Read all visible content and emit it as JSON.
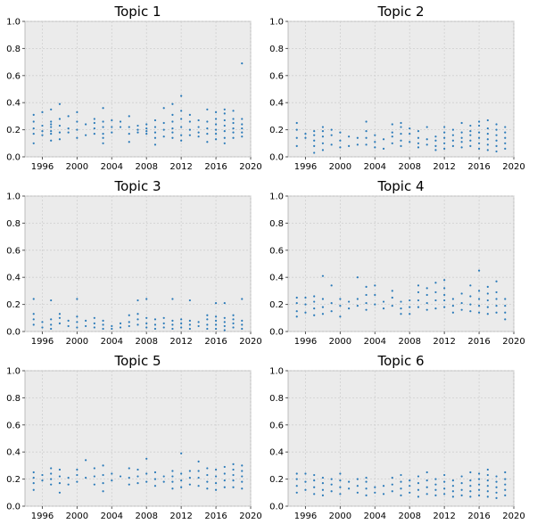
{
  "chart_data": [
    {
      "type": "scatter",
      "title": "Topic 1",
      "xlim": [
        1994,
        2020
      ],
      "ylim": [
        0,
        1
      ],
      "xticks": [
        1996,
        2000,
        2004,
        2008,
        2012,
        2016,
        2020
      ],
      "yticks": [
        0.0,
        0.2,
        0.4,
        0.6,
        0.8,
        1.0
      ],
      "grid": true,
      "years": [
        1995,
        1996,
        1997,
        1998,
        1999,
        2000,
        2001,
        2002,
        2003,
        2004,
        2005,
        2006,
        2007,
        2008,
        2009,
        2010,
        2011,
        2012,
        2013,
        2014,
        2015,
        2016,
        2017,
        2018,
        2019
      ],
      "y": [
        [
          0.1,
          0.17,
          0.21,
          0.26,
          0.31
        ],
        [
          0.16,
          0.19,
          0.23,
          0.33
        ],
        [
          0.12,
          0.17,
          0.19,
          0.22,
          0.24,
          0.26,
          0.35
        ],
        [
          0.13,
          0.18,
          0.23,
          0.28,
          0.39
        ],
        [
          0.18,
          0.21,
          0.3
        ],
        [
          0.14,
          0.2,
          0.26,
          0.33
        ],
        [
          0.16,
          0.24
        ],
        [
          0.17,
          0.21,
          0.25,
          0.28
        ],
        [
          0.1,
          0.14,
          0.17,
          0.22,
          0.26,
          0.36
        ],
        [
          0.18,
          0.22,
          0.27
        ],
        [
          0.22,
          0.26
        ],
        [
          0.11,
          0.17,
          0.22,
          0.3
        ],
        [
          0.18,
          0.2,
          0.23
        ],
        [
          0.17,
          0.19,
          0.21,
          0.24
        ],
        [
          0.09,
          0.14,
          0.18,
          0.22,
          0.27
        ],
        [
          0.15,
          0.2,
          0.25,
          0.36
        ],
        [
          0.14,
          0.18,
          0.21,
          0.26,
          0.31,
          0.39
        ],
        [
          0.12,
          0.16,
          0.22,
          0.28,
          0.34,
          0.45
        ],
        [
          0.16,
          0.2,
          0.26,
          0.31
        ],
        [
          0.15,
          0.18,
          0.22,
          0.27
        ],
        [
          0.11,
          0.17,
          0.21,
          0.26,
          0.35
        ],
        [
          0.13,
          0.17,
          0.2,
          0.24,
          0.28,
          0.33
        ],
        [
          0.1,
          0.14,
          0.19,
          0.23,
          0.27,
          0.32,
          0.35
        ],
        [
          0.14,
          0.18,
          0.21,
          0.25,
          0.28,
          0.34
        ],
        [
          0.15,
          0.18,
          0.21,
          0.24,
          0.28,
          0.69
        ]
      ]
    },
    {
      "type": "scatter",
      "title": "Topic 2",
      "xlim": [
        1994,
        2020
      ],
      "ylim": [
        0,
        1
      ],
      "xticks": [
        1996,
        2000,
        2004,
        2008,
        2012,
        2016,
        2020
      ],
      "yticks": [
        0.0,
        0.2,
        0.4,
        0.6,
        0.8,
        1.0
      ],
      "grid": true,
      "years": [
        1995,
        1996,
        1997,
        1998,
        1999,
        2000,
        2001,
        2002,
        2003,
        2004,
        2005,
        2006,
        2007,
        2008,
        2009,
        2010,
        2011,
        2012,
        2013,
        2014,
        2015,
        2016,
        2017,
        2018,
        2019
      ],
      "y": [
        [
          0.08,
          0.14,
          0.2,
          0.25
        ],
        [
          0.14,
          0.17
        ],
        [
          0.03,
          0.08,
          0.12,
          0.16,
          0.19
        ],
        [
          0.05,
          0.1,
          0.15,
          0.19,
          0.22
        ],
        [
          0.09,
          0.16,
          0.2
        ],
        [
          0.07,
          0.12,
          0.18
        ],
        [
          0.08,
          0.15
        ],
        [
          0.09,
          0.14
        ],
        [
          0.09,
          0.14,
          0.19,
          0.26
        ],
        [
          0.07,
          0.11,
          0.16
        ],
        [
          0.06,
          0.13
        ],
        [
          0.1,
          0.15,
          0.18,
          0.24
        ],
        [
          0.08,
          0.12,
          0.17,
          0.22,
          0.25
        ],
        [
          0.11,
          0.17,
          0.21
        ],
        [
          0.07,
          0.1,
          0.14,
          0.19
        ],
        [
          0.09,
          0.13,
          0.22
        ],
        [
          0.05,
          0.08,
          0.12,
          0.15
        ],
        [
          0.06,
          0.1,
          0.14,
          0.18,
          0.22
        ],
        [
          0.08,
          0.12,
          0.16,
          0.2
        ],
        [
          0.07,
          0.11,
          0.14,
          0.18,
          0.25
        ],
        [
          0.08,
          0.12,
          0.16,
          0.19,
          0.23
        ],
        [
          0.06,
          0.1,
          0.14,
          0.18,
          0.23,
          0.26
        ],
        [
          0.05,
          0.09,
          0.13,
          0.17,
          0.21,
          0.27
        ],
        [
          0.04,
          0.08,
          0.12,
          0.16,
          0.2,
          0.24
        ],
        [
          0.06,
          0.1,
          0.14,
          0.18,
          0.22
        ]
      ]
    },
    {
      "type": "scatter",
      "title": "Topic 3",
      "xlim": [
        1994,
        2020
      ],
      "ylim": [
        0,
        1
      ],
      "xticks": [
        1996,
        2000,
        2004,
        2008,
        2012,
        2016,
        2020
      ],
      "yticks": [
        0.0,
        0.2,
        0.4,
        0.6,
        0.8,
        1.0
      ],
      "grid": true,
      "years": [
        1995,
        1996,
        1997,
        1998,
        1999,
        2000,
        2001,
        2002,
        2003,
        2004,
        2005,
        2006,
        2007,
        2008,
        2009,
        2010,
        2011,
        2012,
        2013,
        2014,
        2015,
        2016,
        2017,
        2018,
        2019
      ],
      "y": [
        [
          0.05,
          0.09,
          0.13,
          0.24
        ],
        [
          0.03,
          0.07
        ],
        [
          0.02,
          0.05,
          0.09,
          0.23
        ],
        [
          0.06,
          0.1,
          0.13
        ],
        [
          0.04,
          0.08
        ],
        [
          0.03,
          0.07,
          0.11,
          0.24
        ],
        [
          0.04,
          0.08
        ],
        [
          0.03,
          0.06,
          0.1
        ],
        [
          0.02,
          0.05,
          0.08
        ],
        [
          0.02,
          0.04
        ],
        [
          0.03,
          0.06
        ],
        [
          0.04,
          0.07,
          0.12
        ],
        [
          0.05,
          0.09,
          0.13,
          0.23
        ],
        [
          0.03,
          0.06,
          0.1,
          0.24
        ],
        [
          0.02,
          0.05,
          0.09
        ],
        [
          0.03,
          0.06,
          0.1
        ],
        [
          0.02,
          0.05,
          0.08,
          0.24
        ],
        [
          0.03,
          0.06,
          0.09
        ],
        [
          0.02,
          0.05,
          0.08,
          0.23
        ],
        [
          0.04,
          0.07
        ],
        [
          0.02,
          0.05,
          0.09,
          0.12
        ],
        [
          0.02,
          0.05,
          0.08,
          0.11,
          0.21
        ],
        [
          0.01,
          0.04,
          0.07,
          0.1,
          0.21
        ],
        [
          0.03,
          0.06,
          0.09,
          0.12
        ],
        [
          0.02,
          0.05,
          0.08,
          0.24
        ]
      ]
    },
    {
      "type": "scatter",
      "title": "Topic 4",
      "xlim": [
        1994,
        2020
      ],
      "ylim": [
        0,
        1
      ],
      "xticks": [
        1996,
        2000,
        2004,
        2008,
        2012,
        2016,
        2020
      ],
      "yticks": [
        0.0,
        0.2,
        0.4,
        0.6,
        0.8,
        1.0
      ],
      "grid": true,
      "years": [
        1995,
        1996,
        1997,
        1998,
        1999,
        2000,
        2001,
        2002,
        2003,
        2004,
        2005,
        2006,
        2007,
        2008,
        2009,
        2010,
        2011,
        2012,
        2013,
        2014,
        2015,
        2016,
        2017,
        2018,
        2019
      ],
      "y": [
        [
          0.11,
          0.15,
          0.21,
          0.25
        ],
        [
          0.14,
          0.2,
          0.25
        ],
        [
          0.12,
          0.17,
          0.22,
          0.26
        ],
        [
          0.13,
          0.18,
          0.24,
          0.41
        ],
        [
          0.15,
          0.21,
          0.34
        ],
        [
          0.11,
          0.19,
          0.24
        ],
        [
          0.17,
          0.22
        ],
        [
          0.19,
          0.24,
          0.4
        ],
        [
          0.16,
          0.21,
          0.27,
          0.33
        ],
        [
          0.2,
          0.27,
          0.34
        ],
        [
          0.17,
          0.22
        ],
        [
          0.19,
          0.25,
          0.3
        ],
        [
          0.13,
          0.17,
          0.22
        ],
        [
          0.13,
          0.18,
          0.23
        ],
        [
          0.18,
          0.23,
          0.29,
          0.34
        ],
        [
          0.16,
          0.21,
          0.27,
          0.32
        ],
        [
          0.17,
          0.23,
          0.29,
          0.36
        ],
        [
          0.18,
          0.23,
          0.27,
          0.32,
          0.38
        ],
        [
          0.14,
          0.19,
          0.24
        ],
        [
          0.16,
          0.21,
          0.28
        ],
        [
          0.15,
          0.2,
          0.26,
          0.34
        ],
        [
          0.14,
          0.19,
          0.24,
          0.3,
          0.45
        ],
        [
          0.13,
          0.18,
          0.23,
          0.28,
          0.33
        ],
        [
          0.14,
          0.19,
          0.24,
          0.29,
          0.37
        ],
        [
          0.09,
          0.14,
          0.19,
          0.24
        ]
      ]
    },
    {
      "type": "scatter",
      "title": "Topic 5",
      "xlim": [
        1994,
        2020
      ],
      "ylim": [
        0,
        1
      ],
      "xticks": [
        1996,
        2000,
        2004,
        2008,
        2012,
        2016,
        2020
      ],
      "yticks": [
        0.0,
        0.2,
        0.4,
        0.6,
        0.8,
        1.0
      ],
      "grid": true,
      "years": [
        1995,
        1996,
        1997,
        1998,
        1999,
        2000,
        2001,
        2002,
        2003,
        2004,
        2005,
        2006,
        2007,
        2008,
        2009,
        2010,
        2011,
        2012,
        2013,
        2014,
        2015,
        2016,
        2017,
        2018,
        2019
      ],
      "y": [
        [
          0.12,
          0.17,
          0.21,
          0.25
        ],
        [
          0.19,
          0.23
        ],
        [
          0.16,
          0.2,
          0.24,
          0.28
        ],
        [
          0.1,
          0.17,
          0.22,
          0.27
        ],
        [
          0.16,
          0.21
        ],
        [
          0.18,
          0.23,
          0.27
        ],
        [
          0.21,
          0.34
        ],
        [
          0.16,
          0.22,
          0.28
        ],
        [
          0.11,
          0.17,
          0.23,
          0.3
        ],
        [
          0.19,
          0.24
        ],
        [
          0.22
        ],
        [
          0.16,
          0.21,
          0.28
        ],
        [
          0.17,
          0.22,
          0.27
        ],
        [
          0.18,
          0.24,
          0.35
        ],
        [
          0.15,
          0.2,
          0.25
        ],
        [
          0.18,
          0.22
        ],
        [
          0.13,
          0.18,
          0.22,
          0.26
        ],
        [
          0.14,
          0.19,
          0.24,
          0.39
        ],
        [
          0.16,
          0.21,
          0.26
        ],
        [
          0.15,
          0.21,
          0.26,
          0.33
        ],
        [
          0.13,
          0.18,
          0.23,
          0.28
        ],
        [
          0.12,
          0.17,
          0.22,
          0.27
        ],
        [
          0.14,
          0.19,
          0.24,
          0.29
        ],
        [
          0.14,
          0.19,
          0.23,
          0.27,
          0.31
        ],
        [
          0.13,
          0.18,
          0.22,
          0.26,
          0.3
        ]
      ]
    },
    {
      "type": "scatter",
      "title": "Topic 6",
      "xlim": [
        1994,
        2020
      ],
      "ylim": [
        0,
        1
      ],
      "xticks": [
        1996,
        2000,
        2004,
        2008,
        2012,
        2016,
        2020
      ],
      "yticks": [
        0.0,
        0.2,
        0.4,
        0.6,
        0.8,
        1.0
      ],
      "grid": true,
      "years": [
        1995,
        1996,
        1997,
        1998,
        1999,
        2000,
        2001,
        2002,
        2003,
        2004,
        2005,
        2006,
        2007,
        2008,
        2009,
        2010,
        2011,
        2012,
        2013,
        2014,
        2015,
        2016,
        2017,
        2018,
        2019
      ],
      "y": [
        [
          0.1,
          0.15,
          0.2,
          0.24
        ],
        [
          0.12,
          0.18,
          0.24
        ],
        [
          0.09,
          0.14,
          0.19,
          0.23
        ],
        [
          0.08,
          0.12,
          0.17,
          0.21
        ],
        [
          0.11,
          0.16,
          0.2
        ],
        [
          0.09,
          0.14,
          0.19,
          0.24
        ],
        [
          0.13,
          0.18
        ],
        [
          0.1,
          0.15,
          0.2
        ],
        [
          0.08,
          0.13,
          0.18,
          0.21
        ],
        [
          0.1,
          0.14
        ],
        [
          0.09,
          0.15
        ],
        [
          0.11,
          0.16,
          0.21
        ],
        [
          0.08,
          0.13,
          0.18,
          0.23
        ],
        [
          0.1,
          0.15,
          0.19
        ],
        [
          0.07,
          0.12,
          0.17,
          0.22
        ],
        [
          0.09,
          0.14,
          0.19,
          0.25
        ],
        [
          0.08,
          0.12,
          0.16,
          0.2
        ],
        [
          0.09,
          0.13,
          0.18,
          0.23
        ],
        [
          0.07,
          0.11,
          0.15,
          0.19
        ],
        [
          0.08,
          0.12,
          0.17,
          0.22
        ],
        [
          0.07,
          0.11,
          0.15,
          0.19,
          0.25
        ],
        [
          0.08,
          0.12,
          0.16,
          0.2,
          0.24
        ],
        [
          0.07,
          0.11,
          0.15,
          0.19,
          0.23,
          0.27
        ],
        [
          0.06,
          0.1,
          0.14,
          0.18,
          0.22
        ],
        [
          0.08,
          0.12,
          0.16,
          0.2,
          0.25
        ]
      ]
    }
  ],
  "colors": {
    "point": "#2a7ab9",
    "panel_background": "#ebebeb",
    "grid": "#d0d0d0"
  }
}
